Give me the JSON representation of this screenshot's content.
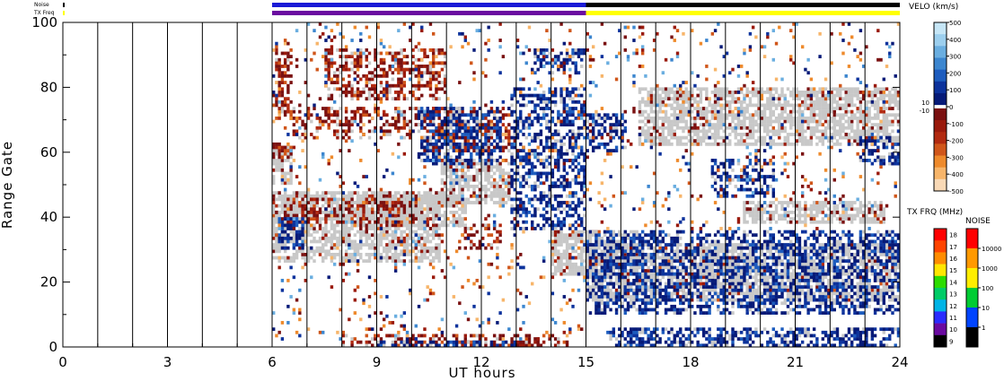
{
  "chart_data": {
    "type": "heatmap",
    "xlabel": "UT hours",
    "ylabel": "Range Gate",
    "xlim": [
      0,
      24
    ],
    "ylim": [
      0,
      100
    ],
    "x_ticks": [
      "0",
      "3",
      "6",
      "9",
      "12",
      "15",
      "18",
      "21",
      "24"
    ],
    "x_tick_values": [
      0,
      3,
      6,
      9,
      12,
      15,
      18,
      21,
      24
    ],
    "y_ticks": [
      "0",
      "20",
      "40",
      "60",
      "80",
      "100"
    ],
    "y_tick_values": [
      0,
      20,
      40,
      60,
      80,
      100
    ],
    "grid": "vertical lines each hour",
    "scan_boundaries_hours": [
      0,
      1,
      2,
      3,
      4,
      5,
      6,
      7,
      8,
      9,
      10,
      11,
      12,
      13,
      14,
      15,
      16,
      17,
      18,
      19,
      20,
      21,
      22,
      23,
      24
    ],
    "data_start_hour": 6,
    "ground_scatter_color": "#c8c8c8",
    "velocity_scale": {
      "label": "VELO (km/s)",
      "range": [
        -500,
        500
      ],
      "tick_labels": [
        "500",
        "400",
        "300",
        "200",
        "100",
        "0",
        "-100",
        "-200",
        "-300",
        "-400",
        "-500"
      ],
      "tick_values": [
        500,
        400,
        300,
        200,
        100,
        0,
        -100,
        -200,
        -300,
        -400,
        -500
      ],
      "inner_labels": [
        "10",
        "-10"
      ],
      "colors": [
        "#c6e6f6",
        "#9ccfee",
        "#6aaee0",
        "#3c86cf",
        "#1d5cbe",
        "#0c329c",
        "#061a78",
        "#ffffff",
        "#7a1010",
        "#9a1a0c",
        "#b22a10",
        "#d0561a",
        "#ee8a2c",
        "#f7b56a",
        "#f9d9b6"
      ]
    },
    "txfreq_scale": {
      "label": "TX FRQ (MHz)",
      "tick_labels": [
        "18",
        "17",
        "16",
        "15",
        "14",
        "13",
        "12",
        "11",
        "10",
        "9"
      ],
      "colors": [
        "#ff0000",
        "#ff4400",
        "#ff8c00",
        "#ffe600",
        "#2cdc00",
        "#00cc66",
        "#00b4e6",
        "#2a2cff",
        "#6a0aa0",
        "#000000"
      ]
    },
    "noise_scale": {
      "label": "NOISE",
      "tick_labels": [
        "10000",
        "1000",
        "100",
        "10",
        "1"
      ],
      "colors": [
        "#ff0000",
        "#ff9900",
        "#ffee00",
        "#00cc33",
        "#0044ff",
        "#000000"
      ]
    },
    "header_bars": {
      "noise_label": "Noise",
      "txfreq_label": "TX Freq",
      "noise_segments": [
        {
          "from": 6.0,
          "to": 15.0,
          "color": "#1a1ad6"
        },
        {
          "from": 15.0,
          "to": 24.0,
          "color": "#000000"
        }
      ],
      "txfreq_segments": [
        {
          "from": 6.0,
          "to": 15.0,
          "color": "#6a0aa0"
        },
        {
          "from": 15.0,
          "to": 24.0,
          "color": "#ffff00"
        }
      ]
    },
    "regions": [
      {
        "kind": "ground",
        "t0": 6.0,
        "t1": 10.8,
        "g0": 26,
        "g1": 48
      },
      {
        "kind": "ground",
        "t0": 8.4,
        "t1": 11.6,
        "g0": 37,
        "g1": 47
      },
      {
        "kind": "ground",
        "t0": 6.0,
        "t1": 6.6,
        "g0": 50,
        "g1": 62
      },
      {
        "kind": "ground",
        "t0": 10.8,
        "t1": 12.8,
        "g0": 44,
        "g1": 58
      },
      {
        "kind": "ground",
        "t0": 15.0,
        "t1": 24.0,
        "g0": 14,
        "g1": 32
      },
      {
        "kind": "ground",
        "t0": 14.0,
        "t1": 16.5,
        "g0": 22,
        "g1": 36
      },
      {
        "kind": "ground",
        "t0": 19.5,
        "t1": 23.6,
        "g0": 38,
        "g1": 45
      },
      {
        "kind": "ground",
        "t0": 16.5,
        "t1": 24.0,
        "g0": 62,
        "g1": 80
      },
      {
        "kind": "neg",
        "t0": 6.6,
        "t1": 11.4,
        "g0": 64,
        "g1": 74
      },
      {
        "kind": "neg",
        "t0": 6.3,
        "t1": 10.2,
        "g0": 38,
        "g1": 46
      },
      {
        "kind": "neg",
        "t0": 6.0,
        "t1": 6.6,
        "g0": 58,
        "g1": 63
      },
      {
        "kind": "neg",
        "t0": 11.3,
        "t1": 12.6,
        "g0": 30,
        "g1": 38
      },
      {
        "kind": "neg",
        "t0": 10.3,
        "t1": 12.8,
        "g0": 60,
        "g1": 74
      },
      {
        "kind": "neg",
        "t0": 7.5,
        "t1": 11.0,
        "g0": 76,
        "g1": 92
      },
      {
        "kind": "neg",
        "t0": 8.0,
        "t1": 14.5,
        "g0": 0,
        "g1": 4
      },
      {
        "kind": "neg",
        "t0": 6.1,
        "t1": 6.6,
        "g0": 70,
        "g1": 92
      },
      {
        "kind": "pos",
        "t0": 12.8,
        "t1": 15.0,
        "g0": 36,
        "g1": 80
      },
      {
        "kind": "pos",
        "t0": 13.5,
        "t1": 15.0,
        "g0": 84,
        "g1": 92
      },
      {
        "kind": "pos",
        "t0": 10.2,
        "t1": 12.6,
        "g0": 56,
        "g1": 74
      },
      {
        "kind": "pos",
        "t0": 15.0,
        "t1": 24.0,
        "g0": 10,
        "g1": 36
      },
      {
        "kind": "pos",
        "t0": 15.6,
        "t1": 24.0,
        "g0": 0,
        "g1": 6
      },
      {
        "kind": "pos",
        "t0": 6.2,
        "t1": 7.0,
        "g0": 30,
        "g1": 40
      },
      {
        "kind": "pos",
        "t0": 15.0,
        "t1": 16.2,
        "g0": 60,
        "g1": 72
      },
      {
        "kind": "pos",
        "t0": 18.6,
        "t1": 20.4,
        "g0": 46,
        "g1": 58
      },
      {
        "kind": "pos",
        "t0": 22.8,
        "t1": 24.0,
        "g0": 56,
        "g1": 66
      },
      {
        "kind": "pos",
        "t0": 9.0,
        "t1": 13.0,
        "g0": 0,
        "g1": 2
      },
      {
        "kind": "mixed",
        "t0": 6.0,
        "t1": 15.0,
        "g0": 2,
        "g1": 100
      },
      {
        "kind": "mixed",
        "t0": 15.0,
        "t1": 24.0,
        "g0": 36,
        "g1": 100
      }
    ]
  }
}
